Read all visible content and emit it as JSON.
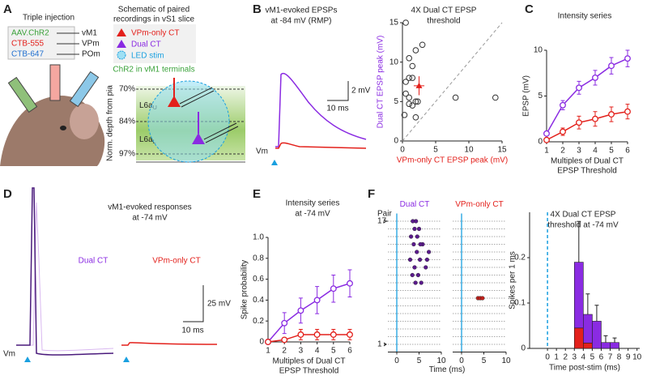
{
  "panels": {
    "a": {
      "letter": "A",
      "title": "Triple injection",
      "injections": [
        {
          "tracer": "AAV.ChR2",
          "target": "vM1"
        },
        {
          "tracer": "CTB-555",
          "target": "VPm"
        },
        {
          "tracer": "CTB-647",
          "target": "POm"
        }
      ],
      "schematic_title": [
        "Schematic of paired",
        "recordings in vS1 slice"
      ],
      "legend": [
        "VPm-only CT",
        "Dual CT",
        "LED stim"
      ],
      "terminals": "ChR2 in vM1 terminals",
      "depth_axis": "Norm. depth from pia",
      "depths": [
        "70%",
        "84%",
        "97%"
      ],
      "layers": [
        {
          "name": "L6a",
          "sub": "U"
        },
        {
          "name": "L6a",
          "sub": "L"
        }
      ]
    },
    "b": {
      "letter": "B",
      "title": [
        "vM1-evoked EPSPs",
        "at -84 mV (RMP)"
      ],
      "scale_y": "2 mV",
      "scale_x": "10 ms",
      "vm": "Vm"
    },
    "c": {
      "letter": "C"
    },
    "d": {
      "letter": "D",
      "title": [
        "vM1-evoked responses",
        "at -74 mV"
      ],
      "labels": [
        "Dual CT",
        "VPm-only CT"
      ],
      "scale_y": "25 mV",
      "scale_x": "10 ms",
      "vm": "Vm"
    },
    "e": {
      "letter": "E"
    },
    "f": {
      "letter": "F",
      "pair_label": "Pair"
    }
  },
  "chart_data": [
    {
      "type": "scatter",
      "title": [
        "4X Dual CT EPSP",
        "threshold"
      ],
      "xlabel": "VPm-only CT EPSP peak (mV)",
      "ylabel": "Dual CT EPSP peak (mV)",
      "xlim": [
        0,
        15
      ],
      "ylim": [
        0,
        15
      ],
      "xticks": [
        0,
        5,
        10,
        15
      ],
      "yticks": [
        0,
        5,
        10,
        15
      ],
      "x": [
        0.5,
        1,
        1,
        0.5,
        1.5,
        0.5,
        1,
        1.5,
        2,
        1,
        2,
        3,
        2,
        1.5,
        8,
        14,
        0.3,
        2.3
      ],
      "y": [
        15,
        10.5,
        8,
        7.5,
        8,
        6,
        5.5,
        4.5,
        5,
        4.7,
        3,
        12.2,
        11.5,
        9.5,
        5.5,
        5.5,
        3.3,
        5
      ],
      "color": "#333333",
      "mean": {
        "x": 2.5,
        "y": 7,
        "x_err": 0.8,
        "y_err": 1.2,
        "color": "#e3201b"
      }
    },
    {
      "type": "line",
      "title": [
        "Intensity series"
      ],
      "xlabel": [
        "Multiples of Dual CT",
        "EPSP Threshold"
      ],
      "ylabel": "EPSP (mV)",
      "x": [
        1,
        2,
        3,
        4,
        5,
        6
      ],
      "xlim": [
        1,
        6
      ],
      "ylim": [
        0,
        10
      ],
      "xticks": [
        1,
        2,
        3,
        4,
        5,
        6
      ],
      "yticks": [
        0,
        5,
        10
      ],
      "series": [
        {
          "color": "#8a2be2",
          "values": [
            0.9,
            4,
            5.9,
            7,
            8.3,
            9.1
          ],
          "errors": [
            0.2,
            0.5,
            0.7,
            0.8,
            0.9,
            0.9
          ]
        },
        {
          "color": "#e3201b",
          "values": [
            0.2,
            1.1,
            2.1,
            2.5,
            3,
            3.3
          ],
          "errors": [
            0.2,
            0.4,
            0.7,
            0.8,
            0.8,
            0.8
          ]
        }
      ]
    },
    {
      "type": "line",
      "title": [
        "Intensity series",
        "at -74 mV"
      ],
      "xlabel": [
        "Multiples of Dual CT",
        "EPSP Threshold"
      ],
      "ylabel": "Spike probability",
      "x": [
        1,
        2,
        3,
        4,
        5,
        6
      ],
      "xlim": [
        1,
        6
      ],
      "ylim": [
        0,
        1
      ],
      "xticks": [
        1,
        2,
        3,
        4,
        5,
        6
      ],
      "yticks": [
        0,
        0.2,
        0.4,
        0.6,
        0.8,
        {
          "value": 1,
          "label": "1.0"
        }
      ],
      "series": [
        {
          "color": "#8a2be2",
          "values": [
            0,
            0.18,
            0.3,
            0.4,
            0.51,
            0.56
          ],
          "errors": [
            0,
            0.1,
            0.12,
            0.13,
            0.13,
            0.13
          ]
        },
        {
          "color": "#e3201b",
          "values": [
            0,
            0.02,
            0.07,
            0.07,
            0.07,
            0.07
          ],
          "errors": [
            0,
            0,
            0.05,
            0.05,
            0.05,
            0.05
          ]
        }
      ]
    },
    {
      "type": "raster",
      "xlabel": "Time (ms)",
      "xlim": [
        -2,
        10
      ],
      "xticks": [
        0,
        5,
        10
      ],
      "ylim": [
        0,
        18
      ],
      "yticks": [
        1,
        17
      ],
      "series": [
        {
          "name": "Dual CT",
          "color": "#5a1a8c",
          "x": [
            4.2,
            5.5,
            3.5,
            4.8,
            6.5,
            4,
            3,
            5.2,
            4.5,
            7.2,
            3.8,
            5.8,
            4.6,
            3.2,
            4,
            5,
            3.6,
            4.3,
            6.8,
            5.3
          ],
          "y": [
            9,
            9,
            10,
            10,
            11,
            11,
            12,
            12,
            13,
            13,
            14,
            14,
            15,
            15,
            16,
            16,
            17,
            17,
            12,
            14
          ]
        },
        {
          "name": "VPm-only CT",
          "color": "#c0201b",
          "x": [
            3.7,
            4.2,
            4.7
          ],
          "y": [
            7,
            7,
            7
          ]
        }
      ]
    },
    {
      "type": "histogram",
      "title": [
        "4X Dual CT EPSP",
        "threshold at -74 mV"
      ],
      "xlabel": "Time post-stim (ms)",
      "ylabel": "Spikes per 1 ms",
      "xlim": [
        -2,
        10.3
      ],
      "ylim": [
        0,
        0.3
      ],
      "xticks": [
        0,
        1,
        2,
        3,
        4,
        5,
        6,
        7,
        8,
        9,
        10
      ],
      "yticks": [
        0,
        0.1,
        0.2
      ],
      "bins": [
        3,
        4,
        5,
        6,
        7,
        8
      ],
      "series": [
        {
          "color": "#e3201b",
          "values": [
            0.045,
            0.012,
            0,
            0,
            0
          ],
          "errors": [
            0.03,
            0.01,
            0,
            0,
            0
          ]
        },
        {
          "color": "#8a2be2",
          "values": [
            0.145,
            0.063,
            0.06,
            0.013,
            0.013
          ],
          "errors": [
            0.09,
            0.045,
            0.035,
            0.015,
            0.01
          ]
        }
      ]
    }
  ]
}
